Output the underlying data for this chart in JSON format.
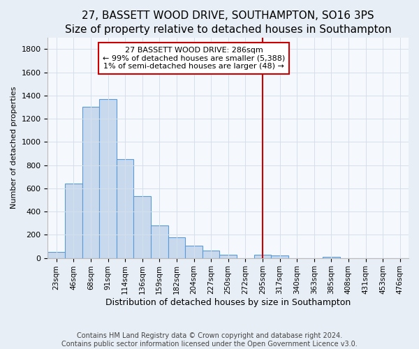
{
  "title": "27, BASSETT WOOD DRIVE, SOUTHAMPTON, SO16 3PS",
  "subtitle": "Size of property relative to detached houses in Southampton",
  "xlabel": "Distribution of detached houses by size in Southampton",
  "ylabel": "Number of detached properties",
  "footnote": "Contains HM Land Registry data © Crown copyright and database right 2024.\nContains public sector information licensed under the Open Government Licence v3.0.",
  "categories": [
    "23sqm",
    "46sqm",
    "68sqm",
    "91sqm",
    "114sqm",
    "136sqm",
    "159sqm",
    "182sqm",
    "204sqm",
    "227sqm",
    "250sqm",
    "272sqm",
    "295sqm",
    "317sqm",
    "340sqm",
    "363sqm",
    "385sqm",
    "408sqm",
    "431sqm",
    "453sqm",
    "476sqm"
  ],
  "values": [
    50,
    640,
    1305,
    1370,
    850,
    530,
    280,
    180,
    105,
    65,
    30,
    0,
    25,
    20,
    0,
    0,
    10,
    0,
    0,
    0,
    0
  ],
  "bar_color": "#c8d9ee",
  "bar_edge_color": "#5b9bd5",
  "annotation_line1": "27 BASSETT WOOD DRIVE: 286sqm",
  "annotation_line2": "← 99% of detached houses are smaller (5,388)",
  "annotation_line3": "1% of semi-detached houses are larger (48) →",
  "annotation_box_facecolor": "#ffffff",
  "annotation_box_edgecolor": "#cc0000",
  "vline_color": "#cc0000",
  "vline_x_index": 12,
  "vline_x_offset": 0.0,
  "ylim_max": 1900,
  "yticks": [
    0,
    200,
    400,
    600,
    800,
    1000,
    1200,
    1400,
    1600,
    1800
  ],
  "grid_color": "#d5e0ec",
  "background_color": "#e8eef5",
  "plot_facecolor": "#f5f8fc",
  "title_fontsize": 11,
  "subtitle_fontsize": 9,
  "footnote_fontsize": 7,
  "xlabel_fontsize": 9,
  "ylabel_fontsize": 8
}
